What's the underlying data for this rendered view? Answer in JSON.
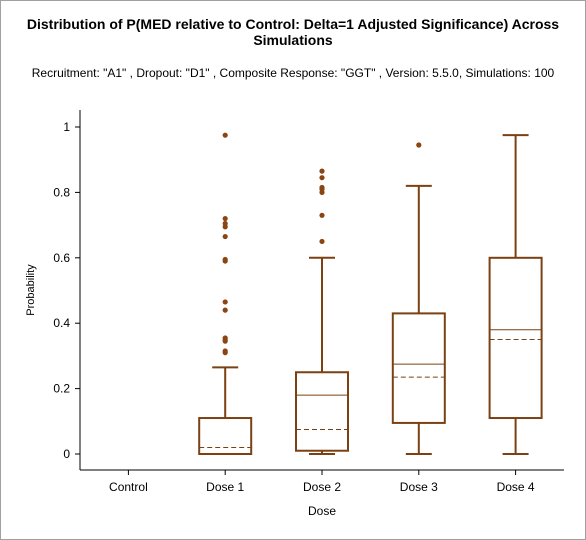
{
  "chart_data": {
    "type": "box",
    "title_line1": "Distribution of P(MED relative to Control: Delta=1 Adjusted Significance) Across",
    "title_line2": "Simulations",
    "subtitle": "Recruitment: \"A1\" , Dropout: \"D1\" , Composite Response: \"GGT\" , Version: 5.5.0, Simulations: 100",
    "xlabel": "Dose",
    "ylabel": "Probability",
    "ylim": [
      0,
      1
    ],
    "yticks": [
      0,
      0.2,
      0.4,
      0.6,
      0.8,
      1
    ],
    "ytick_labels": [
      "0",
      "0.2",
      "0.4",
      "0.6",
      "0.8",
      "1"
    ],
    "categories": [
      "Control",
      "Dose 1",
      "Dose 2",
      "Dose 3",
      "Dose 4"
    ],
    "color": "#7b4113",
    "outlier_color": "#8b4513",
    "boxes": [
      null,
      {
        "min": 0.0,
        "q1": 0.0,
        "median": 0.11,
        "mean": 0.02,
        "q3": 0.11,
        "max": 0.265,
        "outliers": [
          0.975,
          0.72,
          0.705,
          0.695,
          0.665,
          0.595,
          0.59,
          0.465,
          0.44,
          0.355,
          0.35,
          0.345,
          0.315,
          0.31
        ]
      },
      {
        "min": 0.0,
        "q1": 0.01,
        "median": 0.18,
        "mean": 0.075,
        "q3": 0.25,
        "max": 0.6,
        "outliers": [
          0.865,
          0.845,
          0.815,
          0.81,
          0.8,
          0.73,
          0.65
        ]
      },
      {
        "min": 0.0,
        "q1": 0.095,
        "median": 0.275,
        "mean": 0.235,
        "q3": 0.43,
        "max": 0.82,
        "outliers": [
          0.945
        ]
      },
      {
        "min": 0.0,
        "q1": 0.11,
        "median": 0.38,
        "mean": 0.35,
        "q3": 0.6,
        "max": 0.975,
        "outliers": []
      }
    ]
  }
}
